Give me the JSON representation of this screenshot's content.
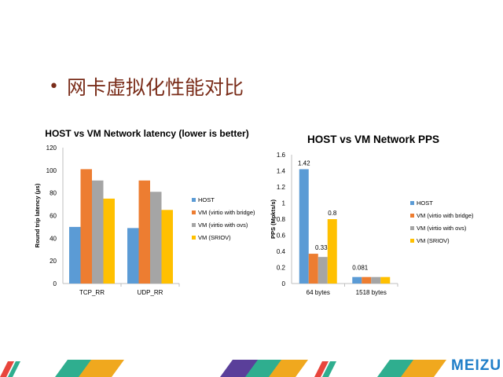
{
  "slide": {
    "title": "网卡虚拟化性能对比",
    "bullet": "•",
    "logo_text": "MEIZU"
  },
  "colors": {
    "HOST": "#5b9bd5",
    "VM (virtio with bridge)": "#ed7d31",
    "VM (virtio with ovs)": "#a5a5a5",
    "VM (SRIOV)": "#ffc000",
    "title": "#7a2d1a",
    "logo": "#1f7ec8"
  },
  "chart_data": [
    {
      "type": "bar",
      "title": "HOST vs VM Network latency (lower is better)",
      "xlabel": "",
      "ylabel": "Round trip latency (μs)",
      "categories": [
        "TCP_RR",
        "UDP_RR"
      ],
      "series": [
        {
          "name": "HOST",
          "values": [
            50,
            49
          ]
        },
        {
          "name": "VM (virtio with bridge)",
          "values": [
            101,
            91
          ]
        },
        {
          "name": "VM (virtio with ovs)",
          "values": [
            91,
            81
          ]
        },
        {
          "name": "VM (SRIOV)",
          "values": [
            75,
            65
          ]
        }
      ],
      "ylim": [
        0,
        120
      ],
      "yticks": [
        "0",
        "20",
        "40",
        "60",
        "80",
        "100",
        "120"
      ],
      "grid": false,
      "legend": "right"
    },
    {
      "type": "bar",
      "title": "HOST vs VM Network PPS",
      "xlabel": "",
      "ylabel": "PPS (Mpkts/s)",
      "categories": [
        "64 bytes",
        "1518 bytes"
      ],
      "series": [
        {
          "name": "HOST",
          "values": [
            1.42,
            0.081
          ]
        },
        {
          "name": "VM (virtio with bridge)",
          "values": [
            0.37,
            0.081
          ]
        },
        {
          "name": "VM (virtio with ovs)",
          "values": [
            0.33,
            0.081
          ]
        },
        {
          "name": "VM (SRIOV)",
          "values": [
            0.8,
            0.081
          ]
        }
      ],
      "data_labels": [
        {
          "series": 0,
          "category": 0,
          "text": "1.42"
        },
        {
          "series": 2,
          "category": 0,
          "text": "0.33"
        },
        {
          "series": 3,
          "category": 0,
          "text": "0.8"
        },
        {
          "series": 0,
          "category": 1,
          "text": "0.081"
        }
      ],
      "ylim": [
        0,
        1.6
      ],
      "yticks": [
        "0",
        "0.2",
        "0.4",
        "0.6",
        "0.8",
        "1",
        "1.2",
        "1.4",
        "1.6"
      ],
      "grid": false,
      "legend": "right"
    }
  ]
}
